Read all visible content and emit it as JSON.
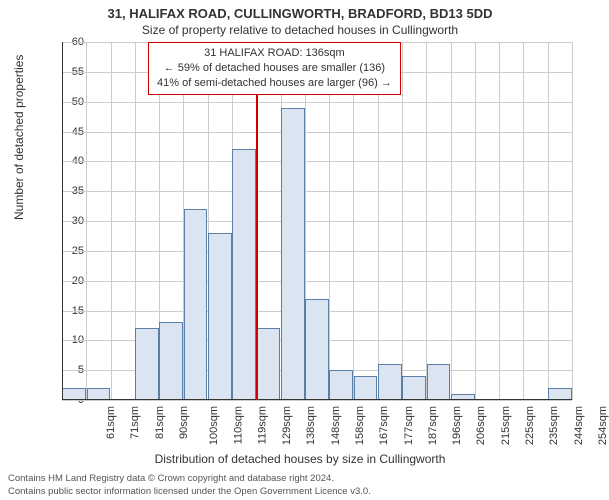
{
  "title": "31, HALIFAX ROAD, CULLINGWORTH, BRADFORD, BD13 5DD",
  "subtitle": "Size of property relative to detached houses in Cullingworth",
  "annotation": {
    "line1": "31 HALIFAX ROAD: 136sqm",
    "line2": "← 59% of detached houses are smaller (136)",
    "line3": "41% of semi-detached houses are larger (96) →"
  },
  "y_axis": {
    "label": "Number of detached properties",
    "ticks": [
      0,
      5,
      10,
      15,
      20,
      25,
      30,
      35,
      40,
      45,
      50,
      55,
      60
    ],
    "max": 60
  },
  "x_axis": {
    "label": "Distribution of detached houses by size in Cullingworth",
    "ticks": [
      "61sqm",
      "71sqm",
      "81sqm",
      "90sqm",
      "100sqm",
      "110sqm",
      "119sqm",
      "129sqm",
      "138sqm",
      "148sqm",
      "158sqm",
      "167sqm",
      "177sqm",
      "187sqm",
      "196sqm",
      "206sqm",
      "215sqm",
      "225sqm",
      "235sqm",
      "244sqm",
      "254sqm"
    ]
  },
  "reference_line": {
    "index": 8
  },
  "chart": {
    "type": "histogram",
    "bar_fill": "#dbe5f1",
    "bar_stroke": "#5b7fa6",
    "grid_color": "#cccccc",
    "background": "#ffffff",
    "values": [
      2,
      2,
      0,
      12,
      13,
      32,
      28,
      42,
      12,
      49,
      17,
      5,
      4,
      6,
      4,
      6,
      1,
      0,
      0,
      0,
      2
    ]
  },
  "footer": {
    "line1": "Contains HM Land Registry data © Crown copyright and database right 2024.",
    "line2": "Contains public sector information licensed under the Open Government Licence v3.0."
  }
}
